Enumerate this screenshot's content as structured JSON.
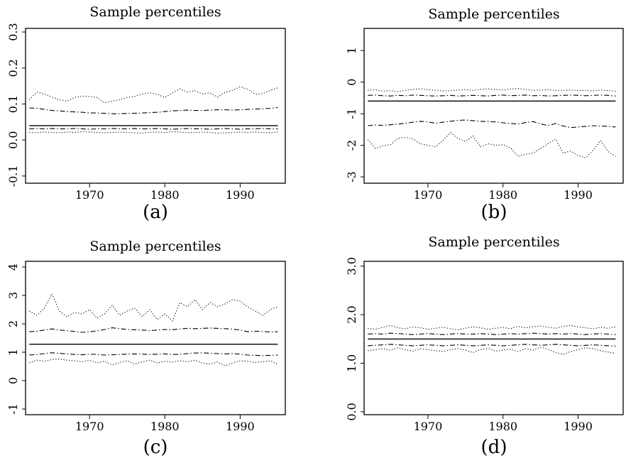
{
  "chart_data": [
    {
      "type": "line",
      "panel": "a",
      "title": "Sample percentiles",
      "caption": "(a)",
      "xlim": [
        1961.5,
        1996
      ],
      "ylim": [
        -0.12,
        0.31
      ],
      "xticks": [
        1970,
        1980,
        1990
      ],
      "xtick_labels": [
        "1970",
        "1980",
        "1990"
      ],
      "yticks": [
        -0.1,
        0.0,
        0.1,
        0.2,
        0.3
      ],
      "ytick_labels": [
        "-0.1",
        "0.0",
        "0.1",
        "0.2",
        "0.3"
      ],
      "x": [
        1962,
        1963,
        1964,
        1965,
        1966,
        1967,
        1968,
        1969,
        1970,
        1971,
        1972,
        1973,
        1974,
        1975,
        1976,
        1977,
        1978,
        1979,
        1980,
        1981,
        1982,
        1983,
        1984,
        1985,
        1986,
        1987,
        1988,
        1989,
        1990,
        1991,
        1992,
        1993,
        1994,
        1995
      ],
      "series": [
        {
          "style": "dotted",
          "values": [
            0.112,
            0.133,
            0.128,
            0.119,
            0.112,
            0.108,
            0.118,
            0.122,
            0.121,
            0.118,
            0.103,
            0.108,
            0.112,
            0.118,
            0.121,
            0.128,
            0.131,
            0.127,
            0.118,
            0.131,
            0.142,
            0.133,
            0.137,
            0.128,
            0.131,
            0.119,
            0.132,
            0.138,
            0.148,
            0.141,
            0.127,
            0.129,
            0.138,
            0.145
          ]
        },
        {
          "style": "dashdot",
          "values": [
            0.089,
            0.088,
            0.085,
            0.082,
            0.081,
            0.079,
            0.078,
            0.077,
            0.075,
            0.075,
            0.074,
            0.073,
            0.073,
            0.074,
            0.074,
            0.075,
            0.076,
            0.077,
            0.079,
            0.081,
            0.082,
            0.083,
            0.082,
            0.082,
            0.083,
            0.084,
            0.084,
            0.083,
            0.084,
            0.085,
            0.086,
            0.087,
            0.088,
            0.09
          ]
        },
        {
          "style": "solid",
          "values": [
            0.04,
            0.04,
            0.04,
            0.04,
            0.04,
            0.04,
            0.04,
            0.04,
            0.04,
            0.04,
            0.04,
            0.04,
            0.04,
            0.04,
            0.04,
            0.04,
            0.04,
            0.04,
            0.04,
            0.04,
            0.04,
            0.04,
            0.04,
            0.04,
            0.04,
            0.04,
            0.04,
            0.04,
            0.04,
            0.04,
            0.04,
            0.04,
            0.04,
            0.04
          ]
        },
        {
          "style": "dashdot",
          "values": [
            0.031,
            0.032,
            0.031,
            0.032,
            0.031,
            0.031,
            0.032,
            0.031,
            0.03,
            0.031,
            0.031,
            0.032,
            0.031,
            0.031,
            0.032,
            0.031,
            0.031,
            0.032,
            0.031,
            0.03,
            0.031,
            0.032,
            0.031,
            0.031,
            0.03,
            0.031,
            0.032,
            0.031,
            0.03,
            0.031,
            0.031,
            0.032,
            0.031,
            0.031
          ]
        },
        {
          "style": "dotted",
          "values": [
            0.021,
            0.02,
            0.022,
            0.021,
            0.02,
            0.022,
            0.021,
            0.023,
            0.022,
            0.021,
            0.02,
            0.021,
            0.022,
            0.021,
            0.02,
            0.019,
            0.021,
            0.022,
            0.021,
            0.023,
            0.022,
            0.02,
            0.021,
            0.022,
            0.021,
            0.019,
            0.02,
            0.021,
            0.022,
            0.021,
            0.022,
            0.021,
            0.02,
            0.022
          ]
        }
      ]
    },
    {
      "type": "line",
      "panel": "b",
      "title": "Sample percentiles",
      "caption": "(b)",
      "xlim": [
        1961.5,
        1996
      ],
      "ylim": [
        -3.2,
        1.7
      ],
      "xticks": [
        1970,
        1980,
        1990
      ],
      "xtick_labels": [
        "1970",
        "1980",
        "1990"
      ],
      "yticks": [
        -3,
        -2,
        -1,
        0,
        1
      ],
      "ytick_labels": [
        "-3",
        "-2",
        "-1",
        "0",
        "1"
      ],
      "x": [
        1962,
        1963,
        1964,
        1965,
        1966,
        1967,
        1968,
        1969,
        1970,
        1971,
        1972,
        1973,
        1974,
        1975,
        1976,
        1977,
        1978,
        1979,
        1980,
        1981,
        1982,
        1983,
        1984,
        1985,
        1986,
        1987,
        1988,
        1989,
        1990,
        1991,
        1992,
        1993,
        1994,
        1995
      ],
      "series": [
        {
          "style": "dotted",
          "values": [
            -0.26,
            -0.24,
            -0.29,
            -0.27,
            -0.3,
            -0.26,
            -0.23,
            -0.21,
            -0.24,
            -0.26,
            -0.28,
            -0.27,
            -0.25,
            -0.24,
            -0.26,
            -0.23,
            -0.21,
            -0.24,
            -0.25,
            -0.22,
            -0.2,
            -0.23,
            -0.26,
            -0.25,
            -0.24,
            -0.27,
            -0.26,
            -0.25,
            -0.27,
            -0.26,
            -0.28,
            -0.25,
            -0.27,
            -0.29
          ]
        },
        {
          "style": "dashdot",
          "values": [
            -0.42,
            -0.41,
            -0.43,
            -0.44,
            -0.42,
            -0.43,
            -0.41,
            -0.42,
            -0.43,
            -0.44,
            -0.43,
            -0.42,
            -0.44,
            -0.43,
            -0.42,
            -0.43,
            -0.44,
            -0.42,
            -0.41,
            -0.43,
            -0.42,
            -0.41,
            -0.43,
            -0.42,
            -0.44,
            -0.43,
            -0.42,
            -0.41,
            -0.42,
            -0.43,
            -0.42,
            -0.41,
            -0.42,
            -0.44
          ]
        },
        {
          "style": "solid",
          "values": [
            -0.6,
            -0.6,
            -0.6,
            -0.6,
            -0.6,
            -0.6,
            -0.6,
            -0.6,
            -0.6,
            -0.6,
            -0.6,
            -0.6,
            -0.6,
            -0.6,
            -0.6,
            -0.6,
            -0.6,
            -0.6,
            -0.6,
            -0.6,
            -0.6,
            -0.6,
            -0.6,
            -0.6,
            -0.6,
            -0.6,
            -0.6,
            -0.6,
            -0.6,
            -0.6,
            -0.6,
            -0.6,
            -0.6,
            -0.6
          ]
        },
        {
          "style": "dashdot",
          "values": [
            -1.38,
            -1.36,
            -1.37,
            -1.35,
            -1.33,
            -1.3,
            -1.27,
            -1.24,
            -1.26,
            -1.3,
            -1.27,
            -1.24,
            -1.21,
            -1.2,
            -1.22,
            -1.24,
            -1.25,
            -1.26,
            -1.29,
            -1.31,
            -1.33,
            -1.28,
            -1.25,
            -1.32,
            -1.38,
            -1.31,
            -1.39,
            -1.44,
            -1.42,
            -1.4,
            -1.38,
            -1.39,
            -1.4,
            -1.42
          ]
        },
        {
          "style": "dotted",
          "values": [
            -1.82,
            -2.1,
            -2.02,
            -1.98,
            -1.78,
            -1.75,
            -1.8,
            -1.95,
            -2.0,
            -2.05,
            -1.85,
            -1.6,
            -1.78,
            -1.88,
            -1.7,
            -2.05,
            -1.95,
            -2.0,
            -1.98,
            -2.08,
            -2.35,
            -2.28,
            -2.25,
            -2.1,
            -1.95,
            -1.8,
            -2.25,
            -2.18,
            -2.32,
            -2.4,
            -2.15,
            -1.85,
            -2.2,
            -2.35
          ]
        }
      ]
    },
    {
      "type": "line",
      "panel": "c",
      "title": "Sample percentiles",
      "caption": "(c)",
      "xlim": [
        1961.5,
        1996
      ],
      "ylim": [
        -1.2,
        4.2
      ],
      "xticks": [
        1970,
        1980,
        1990
      ],
      "xtick_labels": [
        "1970",
        "1980",
        "1990"
      ],
      "yticks": [
        -1,
        0,
        1,
        2,
        3,
        4
      ],
      "ytick_labels": [
        "-1",
        "0",
        "1",
        "2",
        "3",
        "4"
      ],
      "x": [
        1962,
        1963,
        1964,
        1965,
        1966,
        1967,
        1968,
        1969,
        1970,
        1971,
        1972,
        1973,
        1974,
        1975,
        1976,
        1977,
        1978,
        1979,
        1980,
        1981,
        1982,
        1983,
        1984,
        1985,
        1986,
        1987,
        1988,
        1989,
        1990,
        1991,
        1992,
        1993,
        1994,
        1995
      ],
      "series": [
        {
          "style": "dotted",
          "values": [
            2.45,
            2.3,
            2.55,
            3.05,
            2.45,
            2.25,
            2.4,
            2.35,
            2.5,
            2.2,
            2.35,
            2.65,
            2.3,
            2.45,
            2.55,
            2.25,
            2.5,
            2.15,
            2.35,
            2.1,
            2.75,
            2.6,
            2.85,
            2.5,
            2.75,
            2.6,
            2.7,
            2.85,
            2.8,
            2.6,
            2.45,
            2.3,
            2.5,
            2.6
          ]
        },
        {
          "style": "dashdot",
          "values": [
            1.72,
            1.74,
            1.78,
            1.82,
            1.78,
            1.76,
            1.73,
            1.7,
            1.72,
            1.75,
            1.8,
            1.86,
            1.83,
            1.8,
            1.79,
            1.78,
            1.76,
            1.78,
            1.8,
            1.79,
            1.82,
            1.84,
            1.83,
            1.84,
            1.85,
            1.84,
            1.83,
            1.81,
            1.78,
            1.72,
            1.74,
            1.73,
            1.71,
            1.72
          ]
        },
        {
          "style": "solid",
          "values": [
            1.28,
            1.28,
            1.28,
            1.28,
            1.28,
            1.28,
            1.28,
            1.28,
            1.28,
            1.28,
            1.28,
            1.28,
            1.28,
            1.28,
            1.28,
            1.28,
            1.28,
            1.28,
            1.28,
            1.28,
            1.28,
            1.28,
            1.28,
            1.28,
            1.28,
            1.28,
            1.28,
            1.28,
            1.28,
            1.28,
            1.28,
            1.28,
            1.28,
            1.28
          ]
        },
        {
          "style": "dashdot",
          "values": [
            0.9,
            0.92,
            0.95,
            0.98,
            0.96,
            0.94,
            0.92,
            0.91,
            0.93,
            0.92,
            0.9,
            0.91,
            0.92,
            0.93,
            0.94,
            0.93,
            0.92,
            0.93,
            0.94,
            0.92,
            0.93,
            0.95,
            0.97,
            0.98,
            0.96,
            0.95,
            0.94,
            0.95,
            0.93,
            0.9,
            0.89,
            0.88,
            0.89,
            0.9
          ]
        },
        {
          "style": "dotted",
          "values": [
            0.62,
            0.72,
            0.68,
            0.74,
            0.76,
            0.72,
            0.7,
            0.66,
            0.72,
            0.62,
            0.68,
            0.55,
            0.64,
            0.7,
            0.58,
            0.66,
            0.72,
            0.62,
            0.68,
            0.65,
            0.7,
            0.66,
            0.72,
            0.62,
            0.58,
            0.66,
            0.52,
            0.62,
            0.7,
            0.68,
            0.64,
            0.66,
            0.7,
            0.58
          ]
        }
      ]
    },
    {
      "type": "line",
      "panel": "d",
      "title": "Sample percentiles",
      "caption": "(d)",
      "xlim": [
        1961.5,
        1996
      ],
      "ylim": [
        -0.06,
        3.1
      ],
      "xticks": [
        1970,
        1980,
        1990
      ],
      "xtick_labels": [
        "1970",
        "1980",
        "1990"
      ],
      "yticks": [
        0.0,
        1.0,
        2.0,
        3.0
      ],
      "ytick_labels": [
        "0.0",
        "1.0",
        "2.0",
        "3.0"
      ],
      "x": [
        1962,
        1963,
        1964,
        1965,
        1966,
        1967,
        1968,
        1969,
        1970,
        1971,
        1972,
        1973,
        1974,
        1975,
        1976,
        1977,
        1978,
        1979,
        1980,
        1981,
        1982,
        1983,
        1984,
        1985,
        1986,
        1987,
        1988,
        1989,
        1990,
        1991,
        1992,
        1993,
        1994,
        1995
      ],
      "series": [
        {
          "style": "dotted",
          "values": [
            1.72,
            1.7,
            1.74,
            1.78,
            1.73,
            1.71,
            1.75,
            1.73,
            1.7,
            1.72,
            1.74,
            1.71,
            1.69,
            1.72,
            1.75,
            1.73,
            1.7,
            1.72,
            1.74,
            1.71,
            1.76,
            1.73,
            1.75,
            1.77,
            1.74,
            1.72,
            1.76,
            1.78,
            1.75,
            1.73,
            1.71,
            1.74,
            1.72,
            1.75
          ]
        },
        {
          "style": "dashdot",
          "values": [
            1.6,
            1.61,
            1.6,
            1.62,
            1.61,
            1.6,
            1.59,
            1.6,
            1.61,
            1.6,
            1.59,
            1.6,
            1.61,
            1.6,
            1.6,
            1.61,
            1.6,
            1.59,
            1.6,
            1.61,
            1.6,
            1.61,
            1.62,
            1.61,
            1.6,
            1.61,
            1.6,
            1.61,
            1.6,
            1.59,
            1.6,
            1.61,
            1.6,
            1.59
          ]
        },
        {
          "style": "solid",
          "values": [
            1.5,
            1.5,
            1.5,
            1.5,
            1.5,
            1.5,
            1.5,
            1.5,
            1.5,
            1.5,
            1.5,
            1.5,
            1.5,
            1.5,
            1.5,
            1.5,
            1.5,
            1.5,
            1.5,
            1.5,
            1.5,
            1.5,
            1.5,
            1.5,
            1.5,
            1.5,
            1.5,
            1.5,
            1.5,
            1.5,
            1.5,
            1.5,
            1.5,
            1.5
          ]
        },
        {
          "style": "dashdot",
          "values": [
            1.36,
            1.37,
            1.38,
            1.39,
            1.38,
            1.37,
            1.36,
            1.37,
            1.38,
            1.37,
            1.36,
            1.37,
            1.38,
            1.37,
            1.36,
            1.37,
            1.38,
            1.37,
            1.36,
            1.37,
            1.38,
            1.39,
            1.38,
            1.37,
            1.38,
            1.39,
            1.38,
            1.37,
            1.36,
            1.37,
            1.38,
            1.37,
            1.36,
            1.35
          ]
        },
        {
          "style": "dotted",
          "values": [
            1.26,
            1.28,
            1.3,
            1.27,
            1.32,
            1.28,
            1.25,
            1.3,
            1.28,
            1.26,
            1.24,
            1.28,
            1.3,
            1.27,
            1.22,
            1.28,
            1.31,
            1.25,
            1.27,
            1.29,
            1.24,
            1.3,
            1.27,
            1.33,
            1.29,
            1.22,
            1.18,
            1.24,
            1.28,
            1.32,
            1.3,
            1.26,
            1.23,
            1.2
          ]
        }
      ]
    }
  ]
}
